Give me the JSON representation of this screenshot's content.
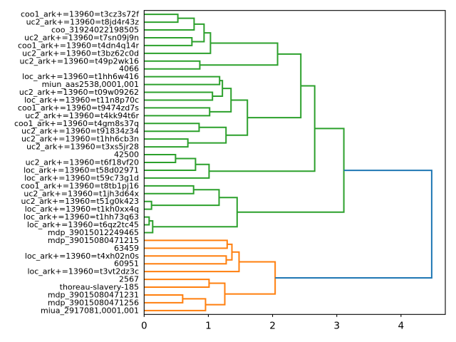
{
  "chart_data": {
    "type": "dendrogram",
    "orientation": "right",
    "title": "",
    "xlabel": "",
    "ylabel": "",
    "xlim": [
      0,
      4.69
    ],
    "xticks": [
      0,
      1,
      2,
      3,
      4
    ],
    "xtick_labels": [
      "0",
      "1",
      "2",
      "3",
      "4"
    ],
    "grid": false,
    "legend": null,
    "colors": {
      "green": "#2ca02c",
      "orange": "#ff7f0e",
      "blue": "#1f77b4"
    },
    "leaves": [
      "coo1_ark+=13960=t3cz3s72f",
      "uc2_ark+=13960=t8jd4r43z",
      "coo_31924022198505",
      "uc2_ark+=13960=t7sn09j9n",
      "coo1_ark+=13960=t4dn4q14r",
      "uc2_ark+=13960=t3bz62c0d",
      "uc2_ark+=13960=t49p2wk16",
      "4066",
      "loc_ark+=13960=t1hh6w416",
      "miun_aas2538,0001,001",
      "uc2_ark+=13960=t09w09262",
      "loc_ark+=13960=t11n8p70c",
      "coo1_ark+=13960=t9474zd7s",
      "uc2_ark+=13960=t4kk94t6r",
      "coo1_ark+=13960=t4gm8s37q",
      "uc2_ark+=13960=t91834z34",
      "uc2_ark+=13960=t1hh6cb3n",
      "uc2_ark+=13960=t3xs5jr28",
      "42500",
      "uc2_ark+=13960=t6f18vf20",
      "loc_ark+=13960=t58d02971",
      "loc_ark+=13960=t59c73g1d",
      "coo1_ark+=13960=t8tb1pj16",
      "uc2_ark+=13960=t1jh3d64x",
      "uc2_ark+=13960=t51g0k423",
      "loc_ark+=13960=t1kh0xx4q",
      "loc_ark+=13960=t1hh73q63",
      "loc_ark+=13960=t6qz2tc45",
      "mdp_39015012249465",
      "mdp_39015080471215",
      "63459",
      "loc_ark+=13960=t4xh02n0s",
      "60951",
      "loc_ark+=13960=t3vt2dz3c",
      "2567",
      "thoreau-slavery-185",
      "mdp_39015080471231",
      "mdp_39015080471256",
      "miua_2917081,0001,001"
    ],
    "merges": [
      {
        "a": "L0",
        "b": "L1",
        "height": 0.525,
        "color": "green"
      },
      {
        "a": "M0",
        "b": "L2",
        "height": 0.778,
        "color": "green"
      },
      {
        "a": "L3",
        "b": "L4",
        "height": 0.744,
        "color": "green"
      },
      {
        "a": "M1",
        "b": "M2",
        "height": 0.933,
        "color": "green"
      },
      {
        "a": "M3",
        "b": "L5",
        "height": 1.033,
        "color": "green"
      },
      {
        "a": "L6",
        "b": "L7",
        "height": 0.867,
        "color": "green"
      },
      {
        "a": "M4",
        "b": "M5",
        "height": 2.078,
        "color": "green"
      },
      {
        "a": "L8",
        "b": "L9",
        "height": 1.175,
        "color": "green"
      },
      {
        "a": "L10",
        "b": "L11",
        "height": 1.064,
        "color": "green"
      },
      {
        "a": "M7",
        "b": "M8",
        "height": 1.219,
        "color": "green"
      },
      {
        "a": "L12",
        "b": "L13",
        "height": 1.02,
        "color": "green"
      },
      {
        "a": "M9",
        "b": "M10",
        "height": 1.353,
        "color": "green"
      },
      {
        "a": "L14",
        "b": "L15",
        "height": 0.856,
        "color": "green"
      },
      {
        "a": "L16",
        "b": "L17",
        "height": 0.681,
        "color": "green"
      },
      {
        "a": "M12",
        "b": "M13",
        "height": 1.275,
        "color": "green"
      },
      {
        "a": "M11",
        "b": "M14",
        "height": 1.608,
        "color": "green"
      },
      {
        "a": "M6",
        "b": "M15",
        "height": 2.44,
        "color": "green"
      },
      {
        "a": "L18",
        "b": "L19",
        "height": 0.489,
        "color": "green"
      },
      {
        "a": "M17",
        "b": "L20",
        "height": 0.8,
        "color": "green"
      },
      {
        "a": "M18",
        "b": "L21",
        "height": 1.011,
        "color": "green"
      },
      {
        "a": "M16",
        "b": "M19",
        "height": 2.656,
        "color": "green"
      },
      {
        "a": "L22",
        "b": "L23",
        "height": 0.77,
        "color": "green"
      },
      {
        "a": "L24",
        "b": "L25",
        "height": 0.115,
        "color": "green"
      },
      {
        "a": "M21",
        "b": "M22",
        "height": 1.167,
        "color": "green"
      },
      {
        "a": "L26",
        "b": "L27",
        "height": 0.078,
        "color": "green"
      },
      {
        "a": "M24",
        "b": "L28",
        "height": 0.133,
        "color": "green"
      },
      {
        "a": "M23",
        "b": "M25",
        "height": 1.448,
        "color": "green"
      },
      {
        "a": "M20",
        "b": "M26",
        "height": 3.11,
        "color": "green"
      },
      {
        "a": "L29",
        "b": "L30",
        "height": 1.293,
        "color": "orange"
      },
      {
        "a": "L31",
        "b": "L32",
        "height": 1.278,
        "color": "orange"
      },
      {
        "a": "M28",
        "b": "M29",
        "height": 1.367,
        "color": "orange"
      },
      {
        "a": "M30",
        "b": "L33",
        "height": 1.478,
        "color": "orange"
      },
      {
        "a": "L34",
        "b": "L35",
        "height": 1.011,
        "color": "orange"
      },
      {
        "a": "L36",
        "b": "L37",
        "height": 0.6,
        "color": "orange"
      },
      {
        "a": "M33",
        "b": "L38",
        "height": 0.956,
        "color": "orange"
      },
      {
        "a": "M32",
        "b": "M34",
        "height": 1.256,
        "color": "orange"
      },
      {
        "a": "M31",
        "b": "M35",
        "height": 2.04,
        "color": "orange"
      },
      {
        "a": "M27",
        "b": "M36",
        "height": 4.478,
        "color": "blue"
      }
    ]
  }
}
